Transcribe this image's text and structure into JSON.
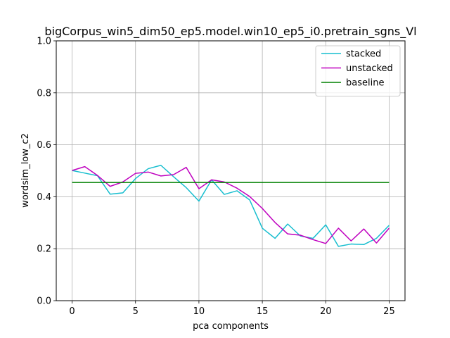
{
  "chart_data": {
    "type": "line",
    "title": "bigCorpus_win5_dim50_ep5.model.win10_ep5_i0.pretrain_sgns_Vl",
    "xlabel": "pca components",
    "ylabel": "wordsim_low_c2",
    "xlim": [
      -1.25,
      26.25
    ],
    "ylim": [
      0.0,
      1.0
    ],
    "xticks": [
      0,
      5,
      10,
      15,
      20,
      25
    ],
    "yticks": [
      0.0,
      0.2,
      0.4,
      0.6,
      0.8,
      1.0
    ],
    "xtick_labels": [
      "0",
      "5",
      "10",
      "15",
      "20",
      "25"
    ],
    "ytick_labels": [
      "0.0",
      "0.2",
      "0.4",
      "0.6",
      "0.8",
      "1.0"
    ],
    "grid": true,
    "legend_position": "top-right",
    "x": [
      0,
      1,
      2,
      3,
      4,
      5,
      6,
      7,
      8,
      9,
      10,
      11,
      12,
      13,
      14,
      15,
      16,
      17,
      18,
      19,
      20,
      21,
      22,
      23,
      24,
      25
    ],
    "series": [
      {
        "name": "stacked",
        "color": "#17becf",
        "values": [
          0.501,
          0.491,
          0.481,
          0.41,
          0.415,
          0.47,
          0.508,
          0.521,
          0.477,
          0.435,
          0.383,
          0.465,
          0.409,
          0.423,
          0.388,
          0.279,
          0.24,
          0.295,
          0.249,
          0.24,
          0.292,
          0.209,
          0.218,
          0.216,
          0.24,
          0.29
        ]
      },
      {
        "name": "unstacked",
        "color": "#bf00bf",
        "values": [
          0.501,
          0.516,
          0.482,
          0.44,
          0.457,
          0.49,
          0.495,
          0.48,
          0.485,
          0.513,
          0.431,
          0.465,
          0.457,
          0.433,
          0.401,
          0.355,
          0.301,
          0.257,
          0.252,
          0.235,
          0.22,
          0.279,
          0.23,
          0.276,
          0.222,
          0.279
        ]
      },
      {
        "name": "baseline",
        "color": "#008000",
        "values": [
          0.455,
          0.455,
          0.455,
          0.455,
          0.455,
          0.455,
          0.455,
          0.455,
          0.455,
          0.455,
          0.455,
          0.455,
          0.455,
          0.455,
          0.455,
          0.455,
          0.455,
          0.455,
          0.455,
          0.455,
          0.455,
          0.455,
          0.455,
          0.455,
          0.455,
          0.455
        ]
      }
    ]
  }
}
